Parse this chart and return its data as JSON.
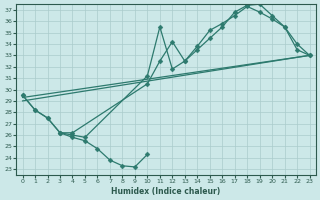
{
  "xlabel": "Humidex (Indice chaleur)",
  "bg_color": "#cce8e8",
  "grid_color": "#aacccc",
  "line_color": "#2d7a6e",
  "markersize": 2.5,
  "linewidth": 0.9,
  "xlim": [
    -0.5,
    23.5
  ],
  "ylim": [
    22.5,
    37.5
  ],
  "xticks": [
    0,
    1,
    2,
    3,
    4,
    5,
    6,
    7,
    8,
    9,
    10,
    11,
    12,
    13,
    14,
    15,
    16,
    17,
    18,
    19,
    20,
    21,
    22,
    23
  ],
  "yticks": [
    23,
    24,
    25,
    26,
    27,
    28,
    29,
    30,
    31,
    32,
    33,
    34,
    35,
    36,
    37
  ],
  "series1": [
    [
      0,
      29.5
    ],
    [
      1,
      28.2
    ],
    [
      2,
      27.5
    ],
    [
      3,
      26.2
    ],
    [
      4,
      26.0
    ],
    [
      5,
      25.8
    ],
    [
      10,
      31.2
    ],
    [
      11,
      35.5
    ],
    [
      12,
      31.8
    ],
    [
      13,
      32.5
    ],
    [
      14,
      33.8
    ],
    [
      15,
      35.2
    ],
    [
      16,
      35.8
    ],
    [
      17,
      36.5
    ],
    [
      18,
      37.3
    ],
    [
      19,
      36.8
    ],
    [
      20,
      36.2
    ],
    [
      21,
      35.5
    ],
    [
      22,
      33.5
    ],
    [
      23,
      33.0
    ]
  ],
  "series2": [
    [
      0,
      29.5
    ],
    [
      1,
      28.2
    ],
    [
      2,
      27.5
    ],
    [
      3,
      26.2
    ],
    [
      4,
      26.2
    ],
    [
      10,
      30.5
    ],
    [
      11,
      32.5
    ],
    [
      12,
      34.2
    ],
    [
      13,
      32.5
    ],
    [
      14,
      33.5
    ],
    [
      15,
      34.5
    ],
    [
      16,
      35.5
    ],
    [
      17,
      36.8
    ],
    [
      18,
      37.4
    ],
    [
      19,
      37.5
    ],
    [
      20,
      36.5
    ],
    [
      21,
      35.5
    ],
    [
      22,
      34.0
    ],
    [
      23,
      33.0
    ]
  ],
  "series3_low": [
    [
      3,
      26.2
    ],
    [
      4,
      25.8
    ],
    [
      5,
      25.5
    ],
    [
      6,
      24.8
    ],
    [
      7,
      23.8
    ],
    [
      8,
      23.3
    ],
    [
      9,
      23.2
    ],
    [
      10,
      24.3
    ]
  ],
  "series_straight": [
    [
      0,
      29.3
    ],
    [
      23,
      33.0
    ]
  ],
  "series_straight2": [
    [
      0,
      29.0
    ],
    [
      23,
      33.0
    ]
  ]
}
